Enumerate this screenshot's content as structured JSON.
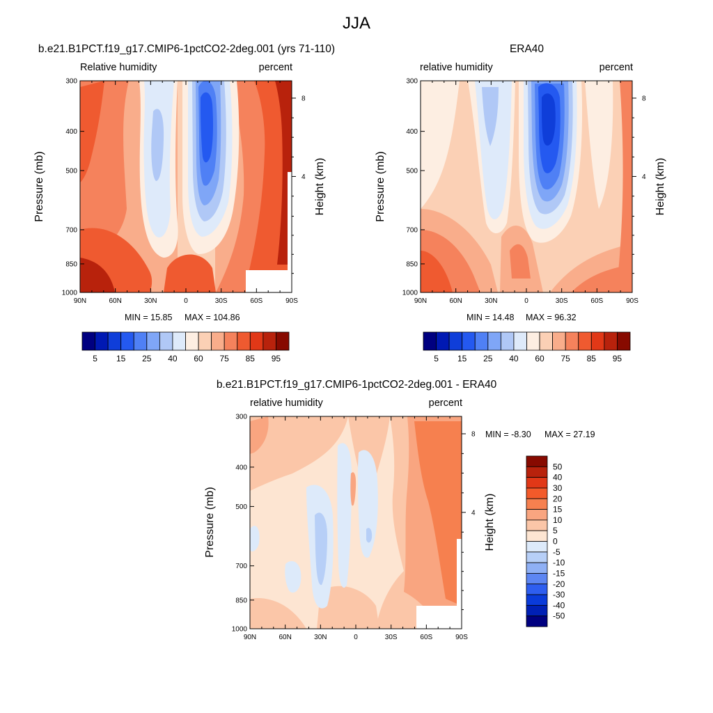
{
  "figure": {
    "title": "JJA"
  },
  "chart_data": [
    {
      "type": "heatmap",
      "title": "b.e21.B1PCT.f19_g17.CMIP6-1pctCO2-2deg.001 (yrs 71-110)",
      "left_subtitle": "Relative humidity",
      "right_subtitle": "percent",
      "xlabel": "",
      "ylabel": "Pressure (mb)",
      "y2label": "Height (km)",
      "x_ticks": [
        "90N",
        "60N",
        "30N",
        "0",
        "30S",
        "60S",
        "90S"
      ],
      "y_ticks": [
        "300",
        "400",
        "500",
        "700",
        "850",
        "1000"
      ],
      "y2_ticks": [
        "8",
        "4"
      ],
      "min_label": "MIN = 15.85",
      "max_label": "MAX = 104.86",
      "stats": {
        "min": 15.85,
        "max": 104.86
      },
      "colorbar": {
        "orientation": "horizontal",
        "tick_labels": [
          "5",
          "15",
          "25",
          "40",
          "60",
          "75",
          "85",
          "95"
        ]
      }
    },
    {
      "type": "heatmap",
      "title": "ERA40",
      "left_subtitle": "relative humidity",
      "right_subtitle": "percent",
      "xlabel": "",
      "ylabel": "Pressure (mb)",
      "y2label": "Height (km)",
      "x_ticks": [
        "90N",
        "60N",
        "30N",
        "0",
        "30S",
        "60S",
        "90S"
      ],
      "y_ticks": [
        "300",
        "400",
        "500",
        "700",
        "850",
        "1000"
      ],
      "y2_ticks": [
        "8",
        "4"
      ],
      "min_label": "MIN = 14.48",
      "max_label": "MAX = 96.32",
      "stats": {
        "min": 14.48,
        "max": 96.32
      },
      "colorbar": {
        "orientation": "horizontal",
        "tick_labels": [
          "5",
          "15",
          "25",
          "40",
          "60",
          "75",
          "85",
          "95"
        ]
      }
    },
    {
      "type": "heatmap",
      "title": "b.e21.B1PCT.f19_g17.CMIP6-1pctCO2-2deg.001 - ERA40",
      "left_subtitle": "relative humidity",
      "right_subtitle": "percent",
      "xlabel": "",
      "ylabel": "Pressure (mb)",
      "y2label": "Height (km)",
      "x_ticks": [
        "90N",
        "60N",
        "30N",
        "0",
        "30S",
        "60S",
        "90S"
      ],
      "y_ticks": [
        "300",
        "400",
        "500",
        "700",
        "850",
        "1000"
      ],
      "y2_ticks": [
        "8",
        "4"
      ],
      "min_label": "MIN = -8.30",
      "max_label": "MAX = 27.19",
      "stats": {
        "min": -8.3,
        "max": 27.19
      },
      "colorbar": {
        "orientation": "vertical",
        "tick_labels": [
          "50",
          "40",
          "30",
          "20",
          "15",
          "10",
          "5",
          "0",
          "-5",
          "-10",
          "-15",
          "-20",
          "-30",
          "-40",
          "-50"
        ]
      }
    }
  ],
  "colors": {
    "abs_scale": [
      "#000080",
      "#0019b3",
      "#0f3ed9",
      "#2459f0",
      "#4f80f5",
      "#7fa6f7",
      "#b0c8f6",
      "#deeafa",
      "#fdeee2",
      "#fbd0b5",
      "#f9ad8b",
      "#f5825c",
      "#ef5a30",
      "#e13817",
      "#b8220c",
      "#870a00"
    ],
    "diff_scale": [
      "#870a00",
      "#b8220c",
      "#e13817",
      "#f35a2a",
      "#f6804f",
      "#f9a580",
      "#fbc6a8",
      "#fde5d2",
      "#ddeafa",
      "#b7cff7",
      "#8fb0f5",
      "#5d86f3",
      "#2e5ef0",
      "#0a3bda",
      "#0020b5",
      "#000080"
    ]
  }
}
